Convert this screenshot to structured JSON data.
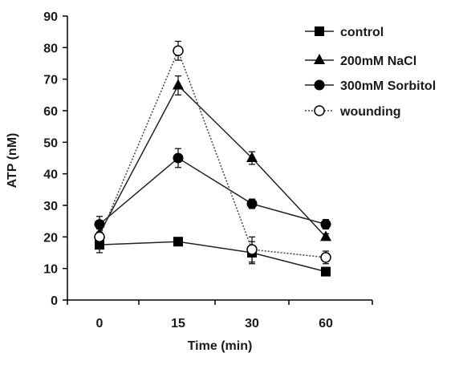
{
  "chart_data": {
    "type": "line",
    "title": "",
    "xlabel": "Time  (min)",
    "ylabel": "ATP  (nM)",
    "categories": [
      "0",
      "15",
      "30",
      "60"
    ],
    "ylim": [
      0,
      90
    ],
    "yticks": [
      "0",
      "10",
      "20",
      "30",
      "40",
      "50",
      "60",
      "70",
      "80",
      "90"
    ],
    "grid": false,
    "legend_position": "top-right",
    "series": [
      {
        "name": "control",
        "marker": "square",
        "line": "solid",
        "values": [
          17.5,
          18.5,
          15,
          9
        ],
        "errors": [
          2.5,
          0.8,
          3.5,
          0.8
        ]
      },
      {
        "name": "200mM NaCl",
        "marker": "triangle",
        "line": "solid",
        "values": [
          21,
          68,
          45,
          20
        ],
        "errors": [
          1.5,
          3,
          2,
          1
        ]
      },
      {
        "name": "300mM Sorbitol",
        "marker": "circle",
        "line": "solid",
        "values": [
          24,
          45,
          30.5,
          24
        ],
        "errors": [
          2.5,
          3,
          1.5,
          1.5
        ]
      },
      {
        "name": "wounding",
        "marker": "circle-open",
        "line": "dotted",
        "values": [
          20,
          79,
          16,
          13.5
        ],
        "errors": [
          1.5,
          3,
          4,
          2
        ]
      }
    ]
  }
}
